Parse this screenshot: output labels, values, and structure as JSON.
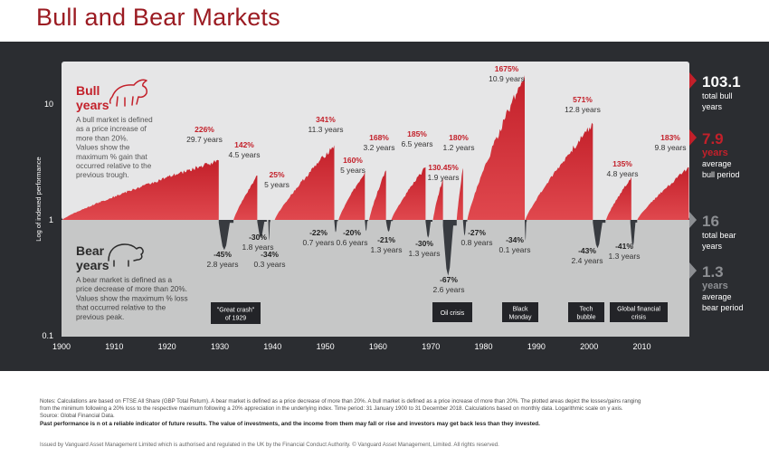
{
  "title": "Bull and Bear Markets",
  "chart_data": {
    "type": "area",
    "ylabel": "Log of indexed performance",
    "yscale": "log",
    "ylim": [
      0.1,
      20
    ],
    "yticks": [
      {
        "v": 10,
        "label": "10"
      },
      {
        "v": 1,
        "label": "1"
      },
      {
        "v": 0.1,
        "label": "0.1"
      }
    ],
    "xlim": [
      1900,
      2019
    ],
    "xticks": [
      1900,
      1910,
      1920,
      1930,
      1940,
      1950,
      1960,
      1970,
      1980,
      1990,
      2000,
      2010
    ],
    "bull_markets": [
      {
        "start": 1900.1,
        "end": 1929.8,
        "peak_pct": 226,
        "gain": "226%",
        "duration": "29.7 years"
      },
      {
        "start": 1932.6,
        "end": 1937.1,
        "peak_pct": 142,
        "gain": "142%",
        "duration": "4.5 years"
      },
      {
        "start": 1940.4,
        "end": 1945.7,
        "peak_pct": 25,
        "gain": "25%",
        "duration": "5 years"
      },
      {
        "start": 1940.4,
        "end": 1951.7,
        "peak_pct": 341,
        "gain": "341%",
        "duration": "11.3 years"
      },
      {
        "start": 1952.5,
        "end": 1957.5,
        "peak_pct": 160,
        "gain": "160%",
        "duration": "5 years"
      },
      {
        "start": 1958.3,
        "end": 1961.5,
        "peak_pct": 168,
        "gain": "168%",
        "duration": "3.2 years"
      },
      {
        "start": 1962.5,
        "end": 1969.0,
        "peak_pct": 185,
        "gain": "185%",
        "duration": "6.5 years"
      },
      {
        "start": 1970.4,
        "end": 1972.3,
        "peak_pct": 130.45,
        "gain": "130.45%",
        "duration": "1.9 years"
      },
      {
        "start": 1974.9,
        "end": 1976.1,
        "peak_pct": 180,
        "gain": "180%",
        "duration": "1.2 years"
      },
      {
        "start": 1976.9,
        "end": 1987.8,
        "peak_pct": 1675,
        "gain": "1675%",
        "duration": "10.9 years"
      },
      {
        "start": 1987.9,
        "end": 2000.7,
        "peak_pct": 571,
        "gain": "571%",
        "duration": "12.8 years"
      },
      {
        "start": 2003.2,
        "end": 2008.0,
        "peak_pct": 135,
        "gain": "135%",
        "duration": "4.8 years"
      },
      {
        "start": 2009.1,
        "end": 2018.9,
        "peak_pct": 183,
        "gain": "183%",
        "duration": "9.8 years"
      }
    ],
    "bear_markets": [
      {
        "start": 1929.8,
        "end": 1932.6,
        "trough_pct": -45,
        "loss": "-45%",
        "duration": "2.8 years"
      },
      {
        "start": 1937.1,
        "end": 1938.9,
        "trough_pct": -30,
        "loss": "-30%",
        "duration": "1.8 years"
      },
      {
        "start": 1939.2,
        "end": 1939.5,
        "trough_pct": -34,
        "loss": "-34%",
        "duration": "0.3 years"
      },
      {
        "start": 1951.7,
        "end": 1952.4,
        "trough_pct": -22,
        "loss": "-22%",
        "duration": "0.7 years"
      },
      {
        "start": 1957.5,
        "end": 1958.1,
        "trough_pct": -20,
        "loss": "-20%",
        "duration": "0.6 years"
      },
      {
        "start": 1961.5,
        "end": 1962.8,
        "trough_pct": -21,
        "loss": "-21%",
        "duration": "1.3 years"
      },
      {
        "start": 1969.0,
        "end": 1970.3,
        "trough_pct": -30,
        "loss": "-30%",
        "duration": "1.3 years"
      },
      {
        "start": 1972.3,
        "end": 1974.9,
        "trough_pct": -67,
        "loss": "-67%",
        "duration": "2.6 years"
      },
      {
        "start": 1976.1,
        "end": 1976.9,
        "trough_pct": -27,
        "loss": "-27%",
        "duration": "0.8 years"
      },
      {
        "start": 1987.8,
        "end": 1987.9,
        "trough_pct": -34,
        "loss": "-34%",
        "duration": "0.1 years"
      },
      {
        "start": 2000.7,
        "end": 2003.1,
        "trough_pct": -43,
        "loss": "-43%",
        "duration": "2.4 years"
      },
      {
        "start": 2007.8,
        "end": 2009.1,
        "trough_pct": -41,
        "loss": "-41%",
        "duration": "1.3 years"
      }
    ],
    "events": [
      {
        "label": "\"Great crash\"\nof 1929",
        "center": 1932.6
      },
      {
        "label": "Oil crisis",
        "center": 1973.9
      },
      {
        "label": "Black\nMonday",
        "center": 1987.8
      },
      {
        "label": "Tech\nbubble",
        "center": 2001.0
      },
      {
        "label": "Global financial\ncrisis",
        "center": 2009.0
      }
    ],
    "bull_legend": {
      "heading1": "Bull",
      "heading2": "years",
      "text": [
        "A bull market is defined",
        "as a price increase of",
        "more than 20%.",
        "Values show the",
        "maximum % gain that",
        "occurred relative to the",
        "previous trough."
      ]
    },
    "bear_legend": {
      "heading1": "Bear",
      "heading2": "years",
      "text": [
        "A bear market is defined as a",
        "price decrease of more than 20%.",
        "Values show the maximum % loss",
        "that occurred relative to the",
        "previous peak."
      ]
    },
    "summary": [
      {
        "value": "103.1",
        "lines": [
          "total bull",
          "years"
        ],
        "accent": false,
        "group": "bull"
      },
      {
        "value": "7.9",
        "lines": [
          "years",
          "average",
          "bull period"
        ],
        "accent": true,
        "group": "bull"
      },
      {
        "value": "16",
        "lines": [
          "total bear",
          "years"
        ],
        "accent": false,
        "group": "bear"
      },
      {
        "value": "1.3",
        "lines": [
          "years",
          "average",
          "bear period"
        ],
        "accent": true,
        "group": "bear"
      }
    ],
    "colors": {
      "bull": "#c3202a",
      "bull_light": "#e0484e",
      "bear": "#383b40",
      "bear_bg": "#c6c7c7",
      "bull_bg": "#e6e6e7",
      "panel": "#2b2d31",
      "title": "#9b1b22"
    }
  },
  "notes": {
    "line1": "Notes: Calculations are based on FTSE All Share (GBP Total Return). A bear market is defined as a price decrease of more than 20%. A bull market is defined as a price increase of more than 20%. The plotted areas depict the losses/gains ranging",
    "line2": "from the minimum following a 20% loss to the respective maximum following a 20% appreciation in the underlying index. Time period: 31 January 1900 to 31 December 2018. Calculations based on monthly data. Logarithmic scale on y axis.",
    "line3": "Source: Global Financial Data.",
    "warning": "Past performance is n ot a reliable indicator of future results. The value of investments, and the income from them may fall or rise and investors may get back less than they invested.",
    "issued": "Issued by Vanguard Asset Management Limited which is authorised and regulated in the UK by the Financial Conduct Authority. © Vanguard Asset Management, Limited. All rights reserved."
  }
}
